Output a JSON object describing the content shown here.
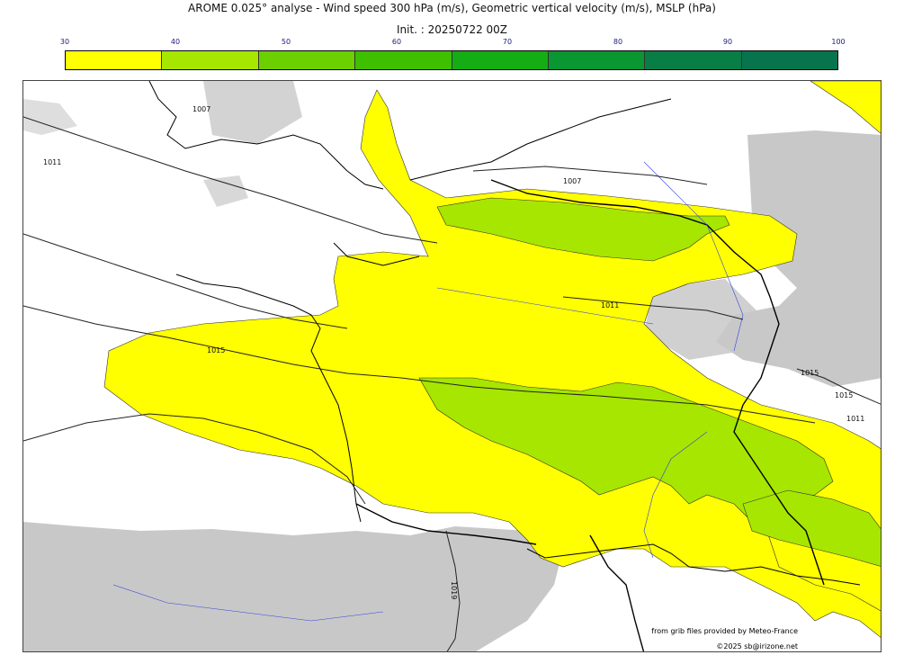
{
  "header": {
    "title": "AROME 0.025° analyse - Wind speed 300 hPa (m/s), Geometric vertical velocity (m/s), MSLP (hPa)",
    "init": "Init. : 20250722 00Z"
  },
  "colorbar": {
    "ticks": [
      "30",
      "40",
      "50",
      "60",
      "70",
      "80",
      "90",
      "100"
    ],
    "colors": [
      "#ffff00",
      "#a6e600",
      "#6ccf00",
      "#3ebf00",
      "#14ad14",
      "#0a9630",
      "#097d46",
      "#08744e"
    ]
  },
  "map": {
    "isobar_labels": [
      "1007",
      "1011",
      "1007",
      "1011",
      "1015",
      "1015",
      "1015",
      "1011",
      "1019"
    ],
    "fill_colors": {
      "wind_30_40": "#ffff00",
      "wind_40_50": "#a6e600",
      "vertical_velocity_shading": "#c8c8c8",
      "rivers": "#3344dd"
    }
  },
  "footer": {
    "source": "from grib files provided by Meteo-France",
    "copyright": "©2025 sb@irizone.net"
  }
}
